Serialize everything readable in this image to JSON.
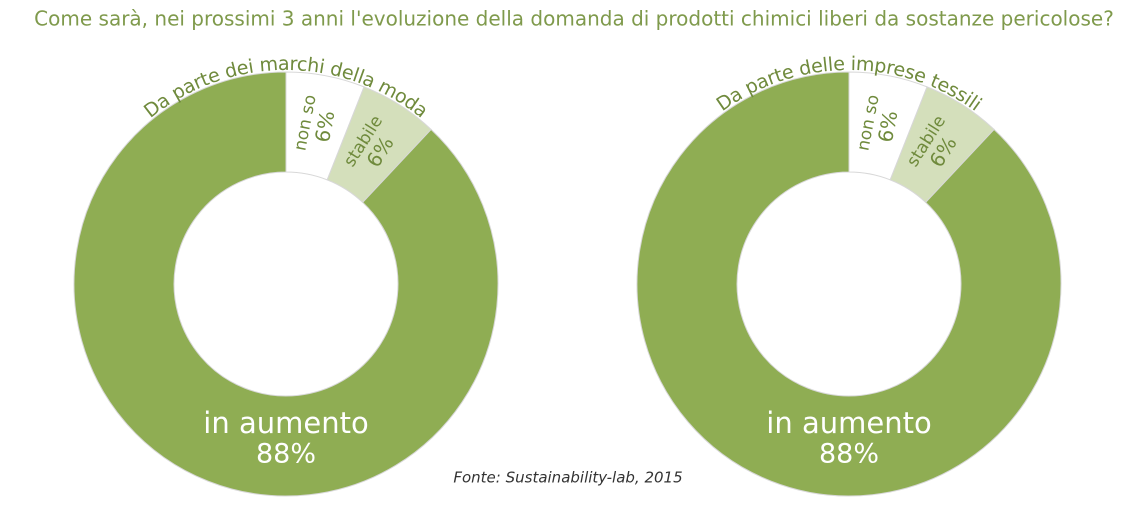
{
  "title": "Come sarà, nei prossimi 3 anni l'evoluzione della domanda di prodotti chimici liberi da sostanze pericolose?",
  "source": "Fonte: Sustainability-lab, 2015",
  "chart_data": [
    {
      "type": "donut",
      "subtitle": "Da parte dei marchi della moda",
      "categories": [
        "non so",
        "stabile",
        "in aumento"
      ],
      "values": [
        6,
        6,
        88
      ],
      "value_labels": [
        "6%",
        "6%",
        "88%"
      ],
      "colors": [
        "#ffffff",
        "#d4dfbb",
        "#8fad53"
      ]
    },
    {
      "type": "donut",
      "subtitle": "Da parte delle imprese tessili",
      "categories": [
        "non so",
        "stabile",
        "in aumento"
      ],
      "values": [
        6,
        6,
        88
      ],
      "value_labels": [
        "6%",
        "6%",
        "88%"
      ],
      "colors": [
        "#ffffff",
        "#d4dfbb",
        "#8fad53"
      ]
    }
  ]
}
